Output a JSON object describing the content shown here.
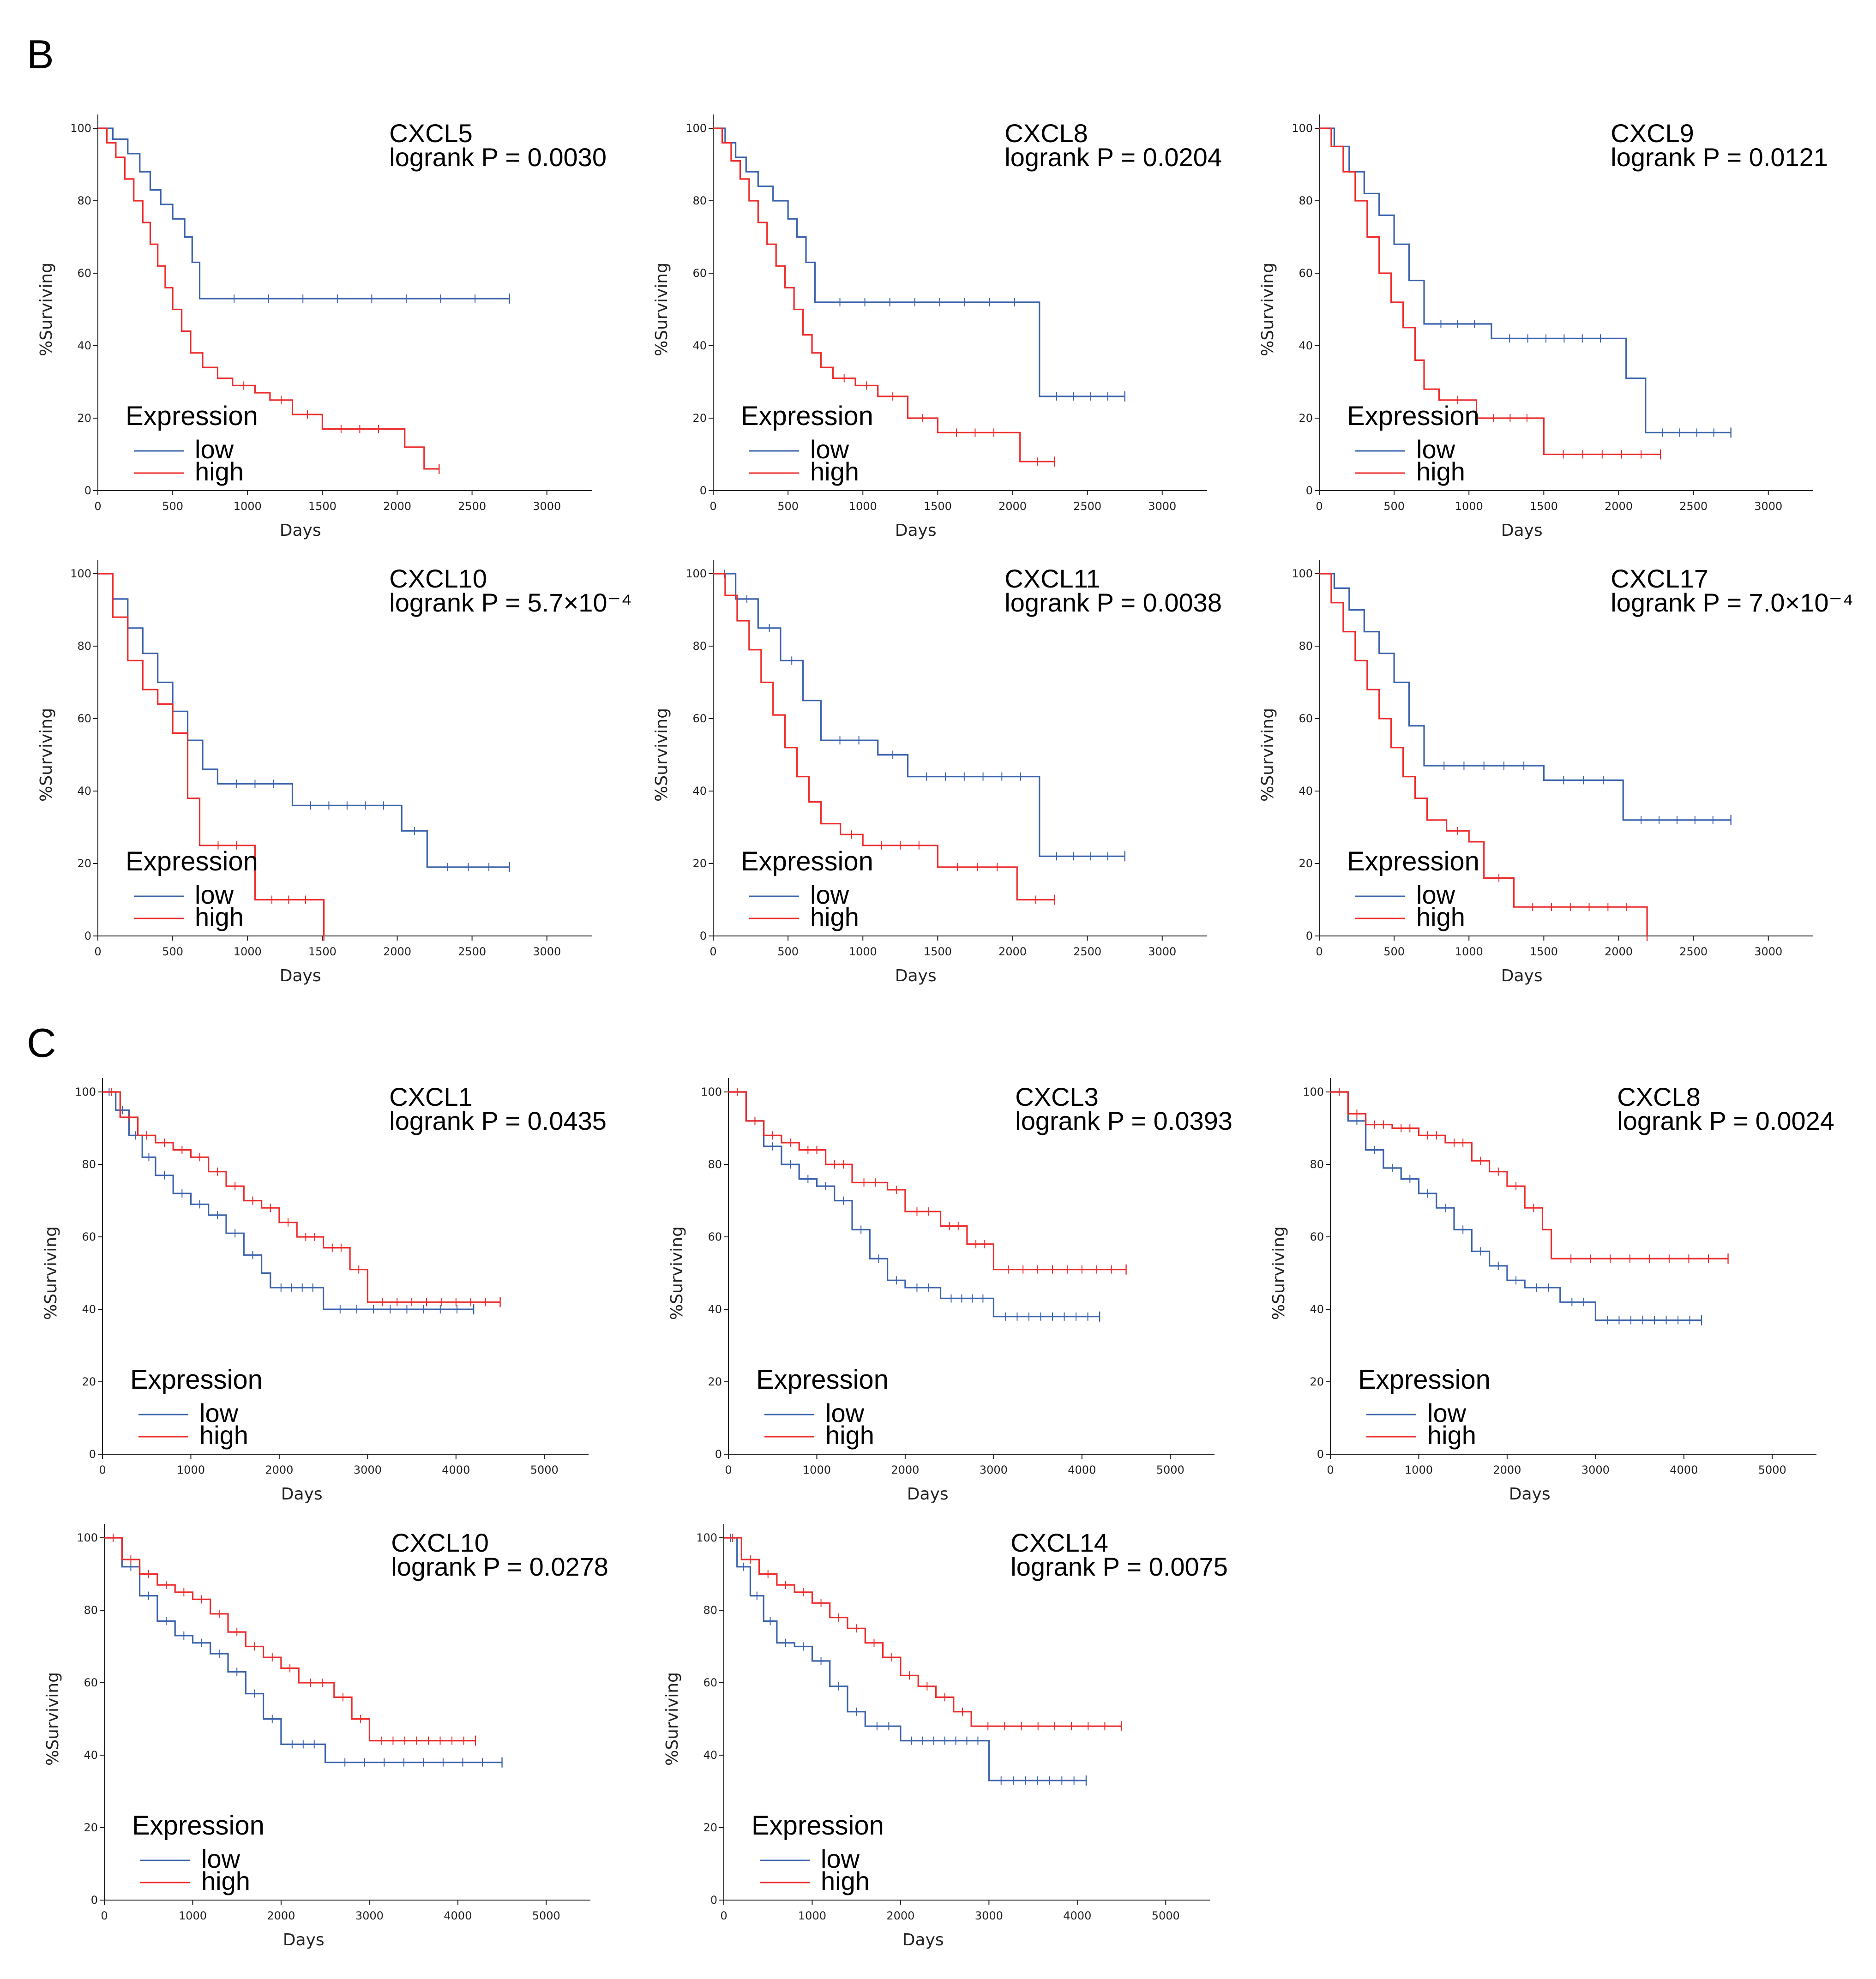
{
  "colors": {
    "low": "#3b62ad",
    "high": "#ee2b2b",
    "axis": "#222222"
  },
  "panel_labels": [
    "B",
    "C"
  ],
  "chart_data": [
    {
      "type": "line",
      "panel": "B",
      "title": "CXCL5",
      "pvalue_text": "logrank P = 0.0030",
      "xlabel": "Days",
      "ylabel": "%Surviving",
      "xlim": [
        0,
        3300
      ],
      "ylim": [
        0,
        100
      ],
      "xticks": [
        0,
        500,
        1000,
        1500,
        2000,
        2500,
        3000
      ],
      "yticks": [
        0,
        20,
        40,
        60,
        80,
        100
      ],
      "legend_title": "Expression",
      "series": [
        {
          "name": "low",
          "x": [
            0,
            100,
            200,
            280,
            350,
            420,
            500,
            580,
            630,
            680,
            2750
          ],
          "y": [
            100,
            97,
            93,
            88,
            83,
            79,
            75,
            70,
            63,
            53,
            53
          ]
        },
        {
          "name": "high",
          "x": [
            0,
            60,
            120,
            180,
            240,
            300,
            350,
            400,
            450,
            500,
            560,
            620,
            700,
            800,
            900,
            1050,
            1150,
            1300,
            1500,
            2000,
            2050,
            2180,
            2280
          ],
          "y": [
            100,
            96,
            92,
            86,
            80,
            74,
            68,
            62,
            56,
            50,
            44,
            38,
            34,
            31,
            29,
            27,
            25,
            21,
            17,
            17,
            12,
            6,
            6
          ]
        }
      ]
    },
    {
      "type": "line",
      "panel": "B",
      "title": "CXCL8",
      "pvalue_text": "logrank P = 0.0204",
      "xlabel": "Days",
      "ylabel": "%Surviving",
      "xlim": [
        0,
        3300
      ],
      "ylim": [
        0,
        100
      ],
      "xticks": [
        0,
        500,
        1000,
        1500,
        2000,
        2500,
        3000
      ],
      "yticks": [
        0,
        20,
        40,
        60,
        80,
        100
      ],
      "legend_title": "Expression",
      "series": [
        {
          "name": "low",
          "x": [
            0,
            80,
            150,
            220,
            300,
            400,
            500,
            560,
            620,
            680,
            2180,
            2750
          ],
          "y": [
            100,
            96,
            92,
            88,
            84,
            80,
            75,
            70,
            63,
            52,
            26,
            26
          ]
        },
        {
          "name": "high",
          "x": [
            0,
            60,
            120,
            180,
            240,
            300,
            360,
            420,
            480,
            540,
            600,
            660,
            720,
            800,
            950,
            1100,
            1300,
            1500,
            2000,
            2050,
            2280
          ],
          "y": [
            100,
            96,
            91,
            86,
            80,
            74,
            68,
            62,
            56,
            50,
            43,
            38,
            34,
            31,
            29,
            26,
            20,
            16,
            16,
            8,
            8
          ]
        }
      ]
    },
    {
      "type": "line",
      "panel": "B",
      "title": "CXCL9",
      "pvalue_text": "logrank P = 0.0121",
      "xlabel": "Days",
      "ylabel": "%Surviving",
      "xlim": [
        0,
        3300
      ],
      "ylim": [
        0,
        100
      ],
      "xticks": [
        0,
        500,
        1000,
        1500,
        2000,
        2500,
        3000
      ],
      "yticks": [
        0,
        20,
        40,
        60,
        80,
        100
      ],
      "legend_title": "Expression",
      "series": [
        {
          "name": "low",
          "x": [
            0,
            100,
            200,
            300,
            400,
            500,
            600,
            700,
            1150,
            2000,
            2050,
            2180,
            2750
          ],
          "y": [
            100,
            95,
            88,
            82,
            76,
            68,
            58,
            46,
            42,
            42,
            31,
            16,
            16
          ]
        },
        {
          "name": "high",
          "x": [
            0,
            80,
            160,
            240,
            320,
            400,
            480,
            560,
            640,
            700,
            800,
            1050,
            1500,
            2280
          ],
          "y": [
            100,
            95,
            88,
            80,
            70,
            60,
            52,
            45,
            36,
            28,
            25,
            20,
            10,
            10
          ]
        }
      ]
    },
    {
      "type": "line",
      "panel": "B",
      "title": "CXCL10",
      "pvalue_text": "logrank P = 5.7×10⁻⁴",
      "xlabel": "Days",
      "ylabel": "%Surviving",
      "xlim": [
        0,
        3300
      ],
      "ylim": [
        0,
        100
      ],
      "xticks": [
        0,
        500,
        1000,
        1500,
        2000,
        2500,
        3000
      ],
      "yticks": [
        0,
        20,
        40,
        60,
        80,
        100
      ],
      "legend_title": "Expression",
      "series": [
        {
          "name": "low",
          "x": [
            0,
            100,
            200,
            300,
            400,
            500,
            600,
            700,
            800,
            1300,
            2030,
            2200,
            2750
          ],
          "y": [
            100,
            93,
            85,
            78,
            70,
            62,
            54,
            46,
            42,
            36,
            29,
            19,
            19
          ]
        },
        {
          "name": "high",
          "x": [
            0,
            100,
            200,
            300,
            400,
            500,
            600,
            680,
            1050,
            1500,
            1510
          ],
          "y": [
            100,
            88,
            76,
            68,
            64,
            56,
            38,
            25,
            10,
            10,
            0
          ]
        }
      ]
    },
    {
      "type": "line",
      "panel": "B",
      "title": "CXCL11",
      "pvalue_text": "logrank P = 0.0038",
      "xlabel": "Days",
      "ylabel": "%Surviving",
      "xlim": [
        0,
        3300
      ],
      "ylim": [
        0,
        100
      ],
      "xticks": [
        0,
        500,
        1000,
        1500,
        2000,
        2500,
        3000
      ],
      "yticks": [
        0,
        20,
        40,
        60,
        80,
        100
      ],
      "legend_title": "Expression",
      "series": [
        {
          "name": "low",
          "x": [
            0,
            150,
            300,
            450,
            600,
            720,
            1100,
            1300,
            2180,
            2750
          ],
          "y": [
            100,
            93,
            85,
            76,
            65,
            54,
            50,
            44,
            22,
            22
          ]
        },
        {
          "name": "high",
          "x": [
            0,
            80,
            160,
            240,
            320,
            400,
            480,
            560,
            640,
            720,
            850,
            1000,
            1500,
            2030,
            2280
          ],
          "y": [
            100,
            94,
            87,
            79,
            70,
            61,
            52,
            44,
            37,
            31,
            28,
            25,
            19,
            10,
            10
          ]
        }
      ]
    },
    {
      "type": "line",
      "panel": "B",
      "title": "CXCL17",
      "pvalue_text": "logrank P = 7.0×10⁻⁴",
      "xlabel": "Days",
      "ylabel": "%Surviving",
      "xlim": [
        0,
        3300
      ],
      "ylim": [
        0,
        100
      ],
      "xticks": [
        0,
        500,
        1000,
        1500,
        2000,
        2500,
        3000
      ],
      "yticks": [
        0,
        20,
        40,
        60,
        80,
        100
      ],
      "legend_title": "Expression",
      "series": [
        {
          "name": "low",
          "x": [
            0,
            100,
            200,
            300,
            400,
            500,
            600,
            700,
            1500,
            2030,
            2750
          ],
          "y": [
            100,
            96,
            90,
            84,
            78,
            70,
            58,
            47,
            43,
            32,
            32
          ]
        },
        {
          "name": "high",
          "x": [
            0,
            80,
            160,
            240,
            320,
            400,
            480,
            560,
            640,
            720,
            850,
            1000,
            1100,
            1300,
            2180,
            2190
          ],
          "y": [
            100,
            92,
            84,
            76,
            68,
            60,
            52,
            44,
            38,
            32,
            29,
            26,
            16,
            8,
            8,
            0
          ]
        }
      ]
    },
    {
      "type": "line",
      "panel": "C",
      "title": "CXCL1",
      "pvalue_text": "logrank P = 0.0435",
      "xlabel": "Days",
      "ylabel": "%Surviving",
      "xlim": [
        0,
        5500
      ],
      "ylim": [
        0,
        100
      ],
      "xticks": [
        0,
        1000,
        2000,
        3000,
        4000,
        5000
      ],
      "yticks": [
        0,
        20,
        40,
        60,
        80,
        100
      ],
      "legend_title": "Expression",
      "series": [
        {
          "name": "low",
          "x": [
            0,
            150,
            300,
            450,
            600,
            800,
            1000,
            1200,
            1400,
            1600,
            1800,
            1900,
            2500,
            4200
          ],
          "y": [
            100,
            95,
            88,
            82,
            77,
            72,
            69,
            66,
            61,
            55,
            50,
            46,
            40,
            40
          ]
        },
        {
          "name": "high",
          "x": [
            0,
            200,
            400,
            600,
            800,
            1000,
            1200,
            1400,
            1600,
            1800,
            2000,
            2200,
            2500,
            2800,
            3000,
            4500
          ],
          "y": [
            100,
            93,
            88,
            86,
            84,
            82,
            78,
            74,
            70,
            68,
            64,
            60,
            57,
            51,
            42,
            42
          ]
        }
      ]
    },
    {
      "type": "line",
      "panel": "C",
      "title": "CXCL3",
      "pvalue_text": "logrank P = 0.0393",
      "xlabel": "Days",
      "ylabel": "%Surviving",
      "xlim": [
        0,
        5500
      ],
      "ylim": [
        0,
        100
      ],
      "xticks": [
        0,
        1000,
        2000,
        3000,
        4000,
        5000
      ],
      "yticks": [
        0,
        20,
        40,
        60,
        80,
        100
      ],
      "legend_title": "Expression",
      "series": [
        {
          "name": "low",
          "x": [
            0,
            200,
            400,
            600,
            800,
            1000,
            1200,
            1400,
            1600,
            1800,
            2000,
            2400,
            3000,
            4200
          ],
          "y": [
            100,
            92,
            85,
            80,
            76,
            74,
            70,
            62,
            54,
            48,
            46,
            43,
            38,
            38
          ]
        },
        {
          "name": "high",
          "x": [
            0,
            200,
            400,
            600,
            800,
            1100,
            1400,
            1800,
            2000,
            2400,
            2700,
            3000,
            4500
          ],
          "y": [
            100,
            92,
            88,
            86,
            84,
            80,
            75,
            73,
            67,
            63,
            58,
            51,
            51
          ]
        }
      ]
    },
    {
      "type": "line",
      "panel": "C",
      "title": "CXCL8",
      "pvalue_text": "logrank P = 0.0024",
      "xlabel": "Days",
      "ylabel": "%Surviving",
      "xlim": [
        0,
        5500
      ],
      "ylim": [
        0,
        100
      ],
      "xticks": [
        0,
        1000,
        2000,
        3000,
        4000,
        5000
      ],
      "yticks": [
        0,
        20,
        40,
        60,
        80,
        100
      ],
      "legend_title": "Expression",
      "series": [
        {
          "name": "low",
          "x": [
            0,
            200,
            400,
            600,
            800,
            1000,
            1200,
            1400,
            1600,
            1800,
            2000,
            2200,
            2600,
            3000,
            4200
          ],
          "y": [
            100,
            92,
            84,
            79,
            76,
            72,
            68,
            62,
            56,
            52,
            48,
            46,
            42,
            37,
            37
          ]
        },
        {
          "name": "high",
          "x": [
            0,
            200,
            400,
            700,
            1000,
            1300,
            1600,
            1800,
            2000,
            2200,
            2400,
            2500,
            4500
          ],
          "y": [
            100,
            94,
            91,
            90,
            88,
            86,
            81,
            78,
            74,
            68,
            62,
            54,
            54
          ]
        }
      ]
    },
    {
      "type": "line",
      "panel": "C",
      "title": "CXCL10",
      "pvalue_text": "logrank P = 0.0278",
      "xlabel": "Days",
      "ylabel": "%Surviving",
      "xlim": [
        0,
        5500
      ],
      "ylim": [
        0,
        100
      ],
      "xticks": [
        0,
        1000,
        2000,
        3000,
        4000,
        5000
      ],
      "yticks": [
        0,
        20,
        40,
        60,
        80,
        100
      ],
      "legend_title": "Expression",
      "series": [
        {
          "name": "low",
          "x": [
            0,
            200,
            400,
            600,
            800,
            1000,
            1200,
            1400,
            1600,
            1800,
            2000,
            2500,
            4500
          ],
          "y": [
            100,
            92,
            84,
            77,
            73,
            71,
            68,
            63,
            57,
            50,
            43,
            38,
            38
          ]
        },
        {
          "name": "high",
          "x": [
            0,
            200,
            400,
            600,
            800,
            1000,
            1200,
            1400,
            1600,
            1800,
            2000,
            2200,
            2600,
            2800,
            3000,
            4200
          ],
          "y": [
            100,
            94,
            90,
            87,
            85,
            83,
            79,
            74,
            70,
            67,
            64,
            60,
            56,
            50,
            44,
            44
          ]
        }
      ]
    },
    {
      "type": "line",
      "panel": "C",
      "title": "CXCL14",
      "pvalue_text": "logrank P = 0.0075",
      "xlabel": "Days",
      "ylabel": "%Surviving",
      "xlim": [
        0,
        5500
      ],
      "ylim": [
        0,
        100
      ],
      "xticks": [
        0,
        1000,
        2000,
        3000,
        4000,
        5000
      ],
      "yticks": [
        0,
        20,
        40,
        60,
        80,
        100
      ],
      "legend_title": "Expression",
      "series": [
        {
          "name": "low",
          "x": [
            0,
            150,
            300,
            450,
            600,
            800,
            1000,
            1200,
            1400,
            1600,
            2000,
            3000,
            4100
          ],
          "y": [
            100,
            92,
            84,
            77,
            71,
            70,
            66,
            59,
            52,
            48,
            44,
            33,
            33
          ]
        },
        {
          "name": "high",
          "x": [
            0,
            200,
            400,
            600,
            800,
            1000,
            1200,
            1400,
            1600,
            1800,
            2000,
            2200,
            2400,
            2600,
            2800,
            4500
          ],
          "y": [
            100,
            94,
            90,
            87,
            85,
            82,
            78,
            75,
            71,
            67,
            62,
            59,
            56,
            52,
            48,
            48
          ]
        }
      ]
    }
  ]
}
